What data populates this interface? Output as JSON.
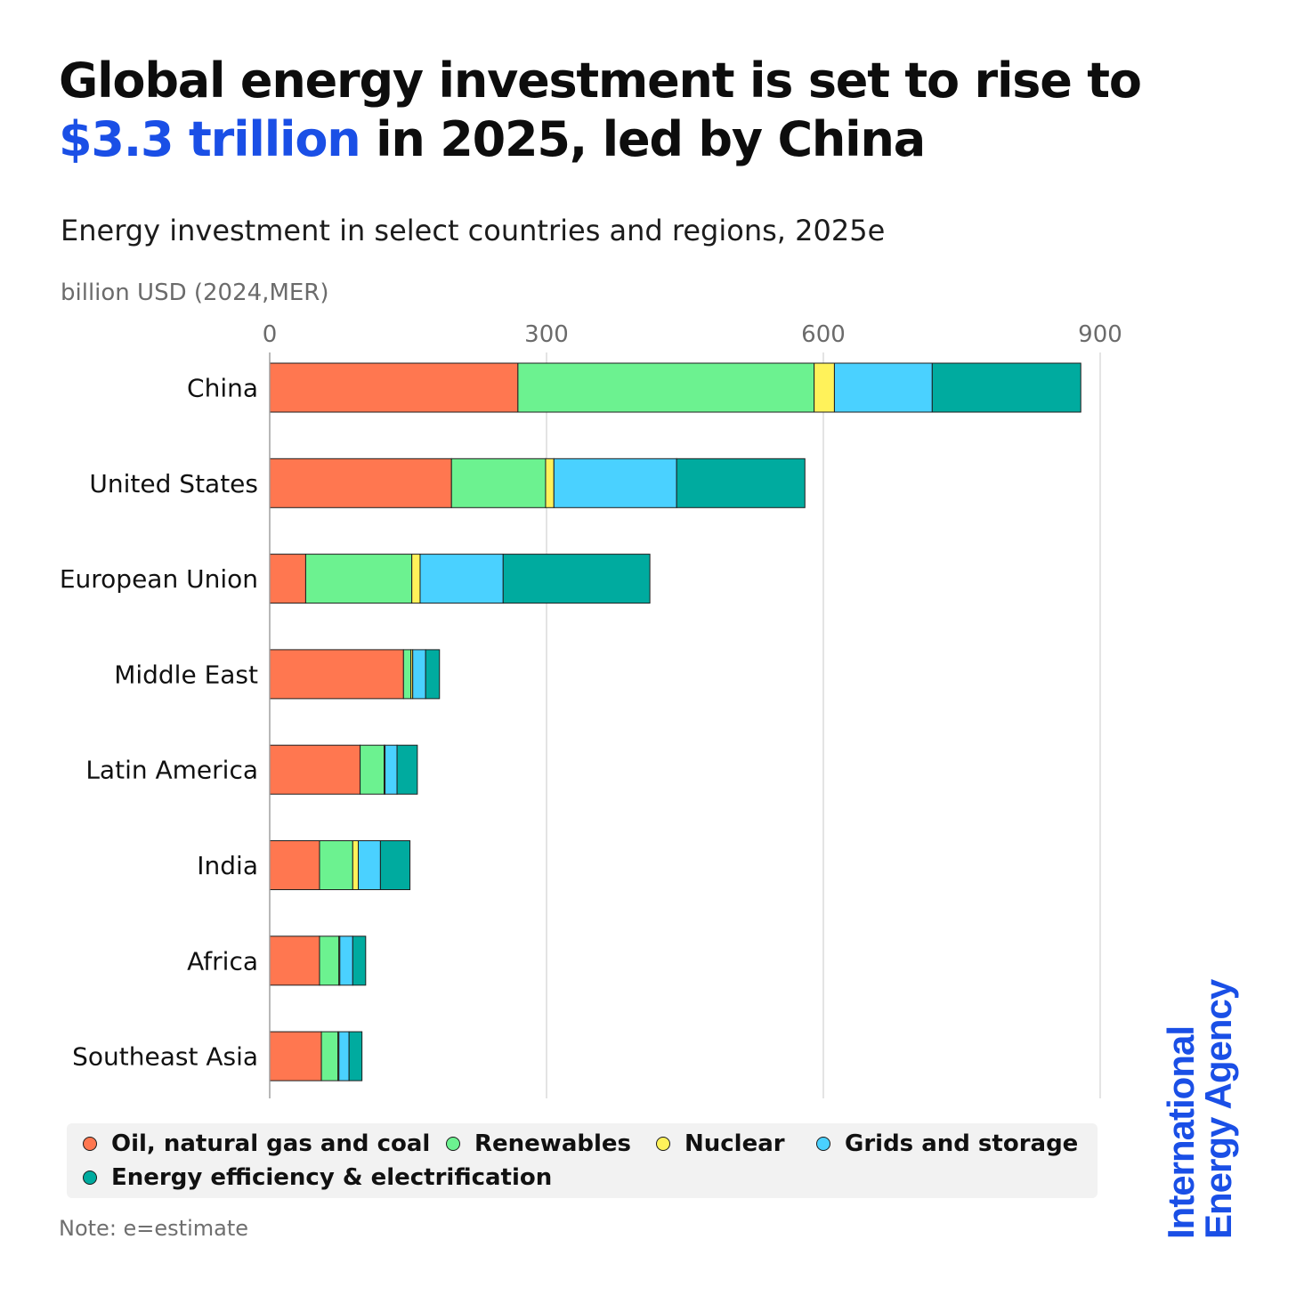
{
  "headline": {
    "line1": "Global energy investment is set to rise to",
    "accent": "$3.3 trillion",
    "rest": " in 2025, led by China"
  },
  "brand": {
    "line1": "International",
    "line2": "Energy Agency",
    "color": "#1a4fe6"
  },
  "note": "Note: e=estimate",
  "legend": {
    "items": [
      {
        "label": "Oil, natural gas and coal",
        "color": "#ff7750"
      },
      {
        "label": "Renewables",
        "color": "#6cf290"
      },
      {
        "label": "Nuclear",
        "color": "#fff25a"
      },
      {
        "label": "Grids and storage",
        "color": "#4ad1ff"
      },
      {
        "label": "Energy efficiency & electrification",
        "color": "#00ab9f"
      }
    ]
  },
  "chart_data": {
    "type": "bar",
    "orientation": "horizontal",
    "stacked": true,
    "title": "Energy investment in select countries and regions, 2025e",
    "xlabel": "billion USD (2024,MER)",
    "ylabel": "",
    "xlim": [
      0,
      900
    ],
    "xticks": [
      0,
      300,
      600,
      900
    ],
    "xtick_labels": [
      "0",
      "300",
      "600",
      "900"
    ],
    "grid": true,
    "categories": [
      "China",
      "United States",
      "European Union",
      "Middle East",
      "Latin America",
      "India",
      "Africa",
      "Southeast Asia"
    ],
    "series": [
      {
        "name": "Oil, natural gas and coal",
        "color": "#ff7750",
        "values": [
          269,
          197,
          39,
          145,
          98,
          54,
          54,
          56
        ]
      },
      {
        "name": "Renewables",
        "color": "#6cf290",
        "values": [
          321,
          102,
          115,
          8,
          26,
          36,
          21,
          18
        ]
      },
      {
        "name": "Nuclear",
        "color": "#fff25a",
        "values": [
          22,
          9,
          9,
          2,
          1,
          6,
          1,
          1
        ]
      },
      {
        "name": "Grids and storage",
        "color": "#4ad1ff",
        "values": [
          106,
          133,
          90,
          14,
          13,
          24,
          14,
          11
        ]
      },
      {
        "name": "Energy efficiency & electrification",
        "color": "#00ab9f",
        "values": [
          161,
          139,
          159,
          15,
          22,
          32,
          14,
          14
        ]
      }
    ]
  }
}
